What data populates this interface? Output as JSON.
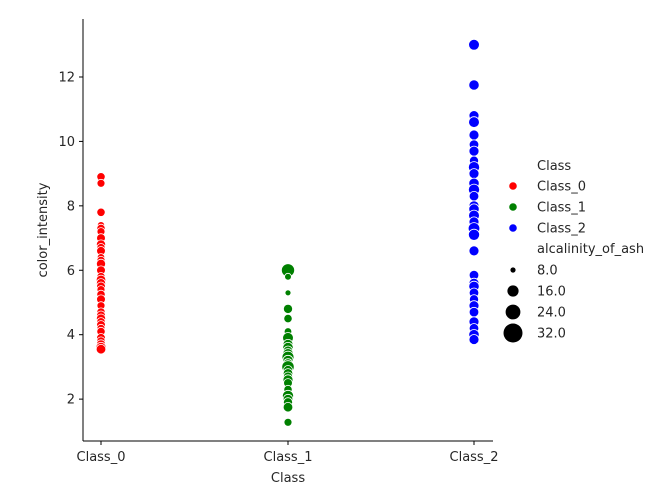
{
  "chart_data": {
    "type": "scatter",
    "xlabel": "Class",
    "ylabel": "color_intensity",
    "categories": [
      "Class_0",
      "Class_1",
      "Class_2"
    ],
    "ylim": [
      0.7,
      13.8
    ],
    "yticks": [
      2,
      4,
      6,
      8,
      10,
      12
    ],
    "grid": false,
    "legend_placement": "right",
    "hue_legend": {
      "title": "Class",
      "entries": [
        {
          "label": "Class_0",
          "color": "#ff0000"
        },
        {
          "label": "Class_1",
          "color": "#008000"
        },
        {
          "label": "Class_2",
          "color": "#0000ff"
        }
      ]
    },
    "size_legend": {
      "title": "alcalinity_of_ash",
      "entries": [
        {
          "label": "8.0",
          "value": 8
        },
        {
          "label": "16.0",
          "value": 16
        },
        {
          "label": "24.0",
          "value": 24
        },
        {
          "label": "32.0",
          "value": 32
        }
      ]
    },
    "series": [
      {
        "name": "Class_0",
        "category": "Class_0",
        "color": "#ff0000",
        "points": [
          {
            "y": 8.9,
            "s": 16
          },
          {
            "y": 8.7,
            "s": 15
          },
          {
            "y": 7.8,
            "s": 16
          },
          {
            "y": 7.4,
            "s": 13
          },
          {
            "y": 7.3,
            "s": 16
          },
          {
            "y": 7.2,
            "s": 15
          },
          {
            "y": 7.0,
            "s": 17
          },
          {
            "y": 6.8,
            "s": 18
          },
          {
            "y": 6.7,
            "s": 16
          },
          {
            "y": 6.6,
            "s": 17
          },
          {
            "y": 6.4,
            "s": 14
          },
          {
            "y": 6.3,
            "s": 16
          },
          {
            "y": 6.2,
            "s": 18
          },
          {
            "y": 6.0,
            "s": 17
          },
          {
            "y": 5.8,
            "s": 16
          },
          {
            "y": 5.7,
            "s": 19
          },
          {
            "y": 5.6,
            "s": 18
          },
          {
            "y": 5.5,
            "s": 17
          },
          {
            "y": 5.4,
            "s": 15
          },
          {
            "y": 5.25,
            "s": 16
          },
          {
            "y": 5.1,
            "s": 17
          },
          {
            "y": 4.9,
            "s": 15
          },
          {
            "y": 4.7,
            "s": 16
          },
          {
            "y": 4.6,
            "s": 17
          },
          {
            "y": 4.5,
            "s": 18
          },
          {
            "y": 4.4,
            "s": 16
          },
          {
            "y": 4.3,
            "s": 17
          },
          {
            "y": 4.2,
            "s": 15
          },
          {
            "y": 4.1,
            "s": 16
          },
          {
            "y": 3.9,
            "s": 17
          },
          {
            "y": 3.8,
            "s": 16
          },
          {
            "y": 3.7,
            "s": 18
          },
          {
            "y": 3.6,
            "s": 21
          },
          {
            "y": 3.55,
            "s": 19
          }
        ]
      },
      {
        "name": "Class_1",
        "category": "Class_1",
        "color": "#008000",
        "points": [
          {
            "y": 6.0,
            "s": 28
          },
          {
            "y": 5.8,
            "s": 12
          },
          {
            "y": 5.3,
            "s": 10
          },
          {
            "y": 4.8,
            "s": 18
          },
          {
            "y": 4.5,
            "s": 16
          },
          {
            "y": 4.1,
            "s": 14
          },
          {
            "y": 3.9,
            "s": 22
          },
          {
            "y": 3.7,
            "s": 20
          },
          {
            "y": 3.6,
            "s": 21
          },
          {
            "y": 3.5,
            "s": 19
          },
          {
            "y": 3.4,
            "s": 22
          },
          {
            "y": 3.3,
            "s": 25
          },
          {
            "y": 3.2,
            "s": 21
          },
          {
            "y": 3.1,
            "s": 20
          },
          {
            "y": 3.0,
            "s": 26
          },
          {
            "y": 2.9,
            "s": 18
          },
          {
            "y": 2.8,
            "s": 19
          },
          {
            "y": 2.7,
            "s": 18
          },
          {
            "y": 2.6,
            "s": 20
          },
          {
            "y": 2.5,
            "s": 17
          },
          {
            "y": 2.3,
            "s": 16
          },
          {
            "y": 2.1,
            "s": 23
          },
          {
            "y": 2.0,
            "s": 19
          },
          {
            "y": 1.9,
            "s": 18
          },
          {
            "y": 1.75,
            "s": 19
          },
          {
            "y": 1.28,
            "s": 15
          }
        ]
      },
      {
        "name": "Class_2",
        "category": "Class_2",
        "color": "#0000ff",
        "points": [
          {
            "y": 13.0,
            "s": 22
          },
          {
            "y": 11.75,
            "s": 21
          },
          {
            "y": 10.8,
            "s": 20
          },
          {
            "y": 10.6,
            "s": 22
          },
          {
            "y": 10.2,
            "s": 20
          },
          {
            "y": 9.9,
            "s": 19
          },
          {
            "y": 9.7,
            "s": 20
          },
          {
            "y": 9.4,
            "s": 18
          },
          {
            "y": 9.2,
            "s": 23
          },
          {
            "y": 9.0,
            "s": 20
          },
          {
            "y": 8.7,
            "s": 21
          },
          {
            "y": 8.5,
            "s": 23
          },
          {
            "y": 8.3,
            "s": 19
          },
          {
            "y": 8.0,
            "s": 20
          },
          {
            "y": 7.9,
            "s": 21
          },
          {
            "y": 7.7,
            "s": 22
          },
          {
            "y": 7.5,
            "s": 20
          },
          {
            "y": 7.3,
            "s": 24
          },
          {
            "y": 7.1,
            "s": 23
          },
          {
            "y": 6.6,
            "s": 20
          },
          {
            "y": 5.85,
            "s": 19
          },
          {
            "y": 5.6,
            "s": 20
          },
          {
            "y": 5.5,
            "s": 21
          },
          {
            "y": 5.3,
            "s": 19
          },
          {
            "y": 5.1,
            "s": 18
          },
          {
            "y": 4.9,
            "s": 20
          },
          {
            "y": 4.7,
            "s": 19
          },
          {
            "y": 4.4,
            "s": 20
          },
          {
            "y": 4.2,
            "s": 19
          },
          {
            "y": 4.0,
            "s": 21
          },
          {
            "y": 3.85,
            "s": 20
          }
        ]
      }
    ]
  }
}
